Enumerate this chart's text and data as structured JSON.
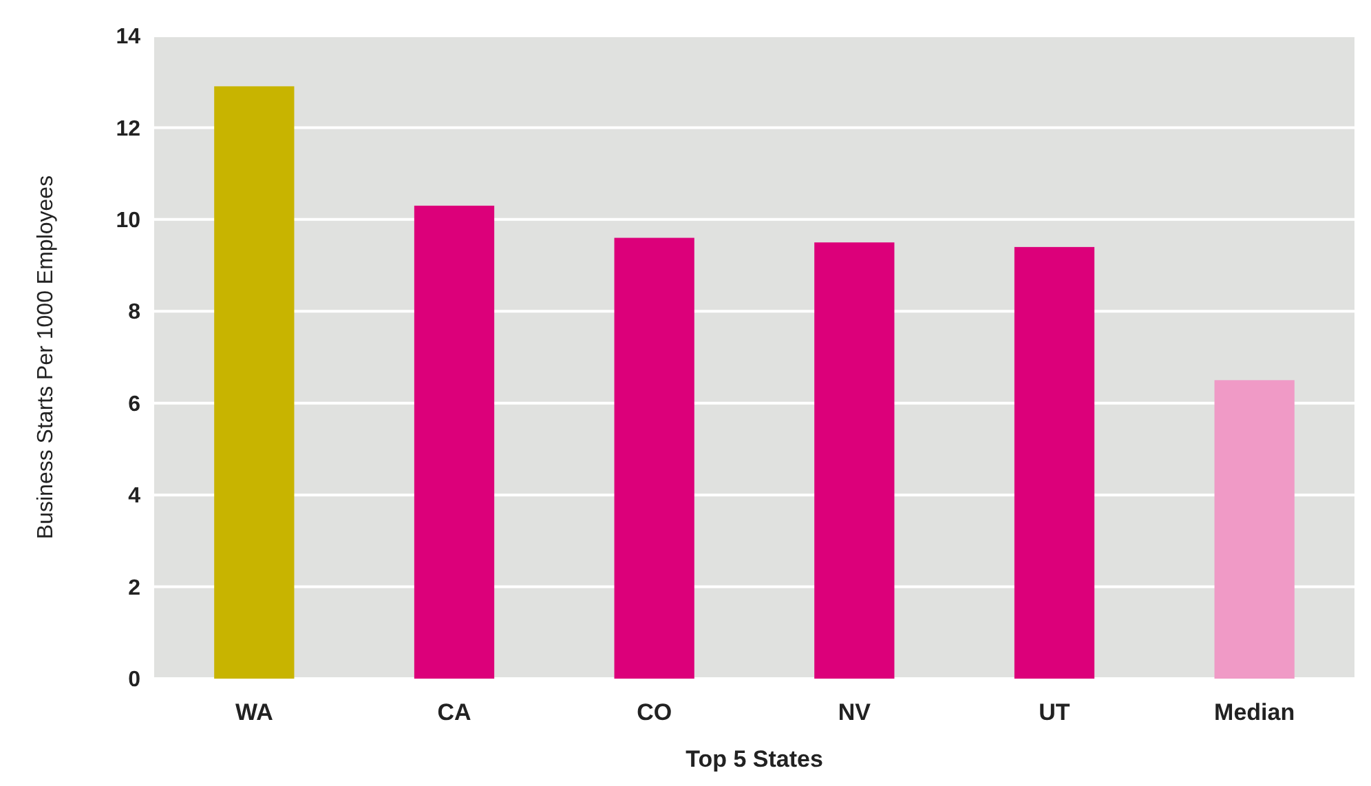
{
  "chart_data": {
    "type": "bar",
    "xlabel": "Top 5 States",
    "ylabel": "Business Starts Per 1000 Employees",
    "categories": [
      "WA",
      "CA",
      "CO",
      "NV",
      "UT",
      "Median"
    ],
    "values": [
      12.9,
      10.3,
      9.6,
      9.5,
      9.4,
      6.5
    ],
    "colors": [
      "#c8b400",
      "#dc007a",
      "#dc007a",
      "#dc007a",
      "#dc007a",
      "#f09ac6"
    ],
    "ylim": [
      0,
      14
    ],
    "yticks": [
      0,
      2,
      4,
      6,
      8,
      10,
      12,
      14
    ],
    "grid": "y"
  }
}
